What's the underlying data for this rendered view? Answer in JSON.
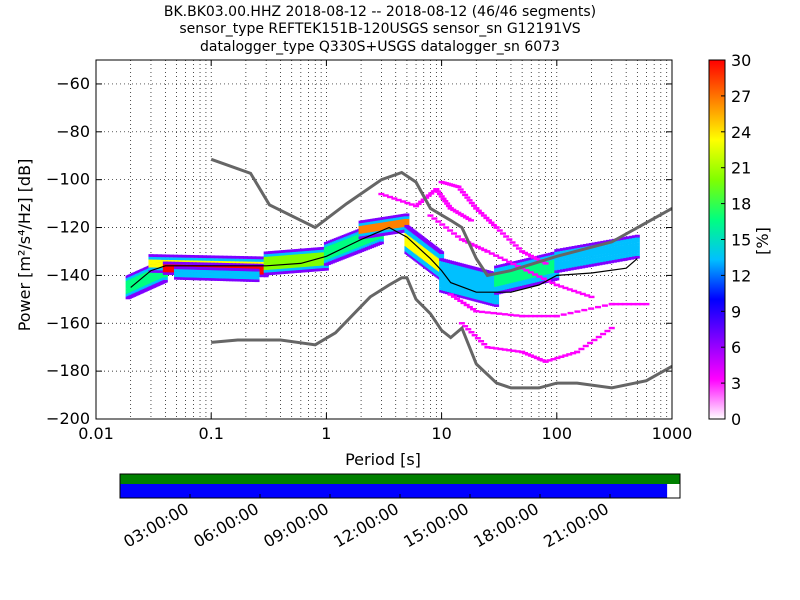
{
  "titles": {
    "line1": "BK.BK03.00.HHZ   2018-08-12 -- 2018-08-12  (46/46 segments)",
    "line2": "sensor_type REFTEK151B-120USGS sensor_sn G12191VS",
    "line3": "datalogger_type Q330S+USGS datalogger_sn 6073"
  },
  "axes": {
    "xlabel": "Period [s]",
    "ylabel": "Power [m²/s⁴/Hz] [dB]",
    "colorbar_label": "[%]"
  },
  "chart_data": [
    {
      "type": "heatmap",
      "title": "",
      "x_scale": "log",
      "xlim": [
        0.01,
        1000
      ],
      "ylim": [
        -200,
        -50
      ],
      "x_ticks": [
        0.01,
        0.1,
        1,
        10,
        100,
        1000
      ],
      "x_tick_labels": [
        "0.01",
        "0.1",
        "1",
        "10",
        "100",
        "1000"
      ],
      "y_ticks": [
        -200,
        -180,
        -160,
        -140,
        -120,
        -100,
        -80,
        -60
      ],
      "y_tick_labels": [
        "−200",
        "−180",
        "−160",
        "−140",
        "−120",
        "−100",
        "−80",
        "−60"
      ],
      "grid": true,
      "colorbar": {
        "min": 0,
        "max": 30,
        "ticks": [
          0,
          3,
          6,
          9,
          12,
          15,
          18,
          21,
          24,
          27,
          30
        ],
        "tick_labels": [
          "0",
          "3",
          "6",
          "9",
          "12",
          "15",
          "18",
          "21",
          "24",
          "27",
          "30"
        ],
        "colors": [
          "#ffffff",
          "#ff00ff",
          "#8000ff",
          "#0000ff",
          "#00c0ff",
          "#00ff80",
          "#80ff00",
          "#ffff00",
          "#ff8000",
          "#ff0000"
        ]
      },
      "nlnm_curve": [
        [
          0.1,
          -168
        ],
        [
          0.17,
          -167
        ],
        [
          0.4,
          -167
        ],
        [
          0.8,
          -169
        ],
        [
          1.2,
          -164
        ],
        [
          2.4,
          -149
        ],
        [
          3.5,
          -144
        ],
        [
          4.5,
          -141
        ],
        [
          5.0,
          -141
        ],
        [
          6.0,
          -150
        ],
        [
          8.0,
          -156
        ],
        [
          10.0,
          -163
        ],
        [
          12.0,
          -166
        ],
        [
          15.0,
          -162
        ],
        [
          20.0,
          -177
        ],
        [
          30.0,
          -185
        ],
        [
          40.0,
          -187
        ],
        [
          70.0,
          -187
        ],
        [
          100.0,
          -185
        ],
        [
          150.0,
          -185
        ],
        [
          300.0,
          -187
        ],
        [
          600.0,
          -184
        ],
        [
          1000.0,
          -178
        ]
      ],
      "nhnm_curve": [
        [
          0.1,
          -91.5
        ],
        [
          0.22,
          -97.4
        ],
        [
          0.32,
          -110.5
        ],
        [
          0.8,
          -120
        ],
        [
          1.5,
          -110
        ],
        [
          3.0,
          -100
        ],
        [
          4.5,
          -97
        ],
        [
          6.0,
          -101
        ],
        [
          8.0,
          -112
        ],
        [
          12.0,
          -117
        ],
        [
          15.0,
          -120
        ],
        [
          20.0,
          -133
        ],
        [
          25.0,
          -140
        ],
        [
          40.0,
          -138
        ],
        [
          100.0,
          -132
        ],
        [
          300.0,
          -126
        ],
        [
          1000.0,
          -112
        ]
      ],
      "mode_curve": [
        [
          0.02,
          -145
        ],
        [
          0.03,
          -138
        ],
        [
          0.04,
          -136
        ],
        [
          0.07,
          -136
        ],
        [
          0.15,
          -136
        ],
        [
          0.3,
          -136
        ],
        [
          0.6,
          -135
        ],
        [
          1.0,
          -132
        ],
        [
          2.0,
          -125
        ],
        [
          3.5,
          -120
        ],
        [
          5.0,
          -124
        ],
        [
          8.0,
          -133
        ],
        [
          10.0,
          -138
        ],
        [
          12.0,
          -143
        ],
        [
          20.0,
          -147
        ],
        [
          40.0,
          -147
        ],
        [
          70.0,
          -144
        ],
        [
          100.0,
          -140
        ],
        [
          200.0,
          -139
        ],
        [
          400.0,
          -137
        ],
        [
          500.0,
          -133
        ]
      ],
      "density": [
        {
          "x": [
            0.019,
            0.04
          ],
          "y": [
            -145,
            -138
          ],
          "spread": 4,
          "color": "#00ff80"
        },
        {
          "x": [
            0.03,
            0.3
          ],
          "y": [
            -135,
            -136
          ],
          "spread": 3,
          "color": "#ffff00"
        },
        {
          "x": [
            0.04,
            0.3
          ],
          "y": [
            -137,
            -138
          ],
          "spread": 2,
          "color": "#ff0000"
        },
        {
          "x": [
            0.05,
            0.25
          ],
          "y": [
            -139,
            -140
          ],
          "spread": 2,
          "color": "#00c0ff"
        },
        {
          "x": [
            0.3,
            1.0
          ],
          "y": [
            -135,
            -133
          ],
          "spread": 4,
          "color": "#80ff00"
        },
        {
          "x": [
            1.0,
            3.0
          ],
          "y": [
            -131,
            -122
          ],
          "spread": 4,
          "color": "#00ff80"
        },
        {
          "x": [
            2.0,
            5.0
          ],
          "y": [
            -121,
            -118
          ],
          "spread": 3,
          "color": "#ff8000"
        },
        {
          "x": [
            5.0,
            10.0
          ],
          "y": [
            -125,
            -136
          ],
          "spread": 5,
          "color": "#ffff00"
        },
        {
          "x": [
            10.0,
            30.0
          ],
          "y": [
            -140,
            -146
          ],
          "spread": 6,
          "color": "#00c0ff"
        },
        {
          "x": [
            30.0,
            100.0
          ],
          "y": [
            -142,
            -136
          ],
          "spread": 5,
          "color": "#00ff80"
        },
        {
          "x": [
            100.0,
            500.0
          ],
          "y": [
            -134,
            -128
          ],
          "spread": 4,
          "color": "#00c0ff"
        }
      ]
    },
    {
      "type": "bar",
      "title": "",
      "x_tick_labels": [
        "03:00:00",
        "06:00:00",
        "09:00:00",
        "12:00:00",
        "15:00:00",
        "18:00:00",
        "21:00:00"
      ],
      "series": [
        {
          "coverage": 1.0,
          "color": "#008000"
        },
        {
          "coverage": 0.977,
          "color": "#0000ff"
        }
      ]
    }
  ]
}
